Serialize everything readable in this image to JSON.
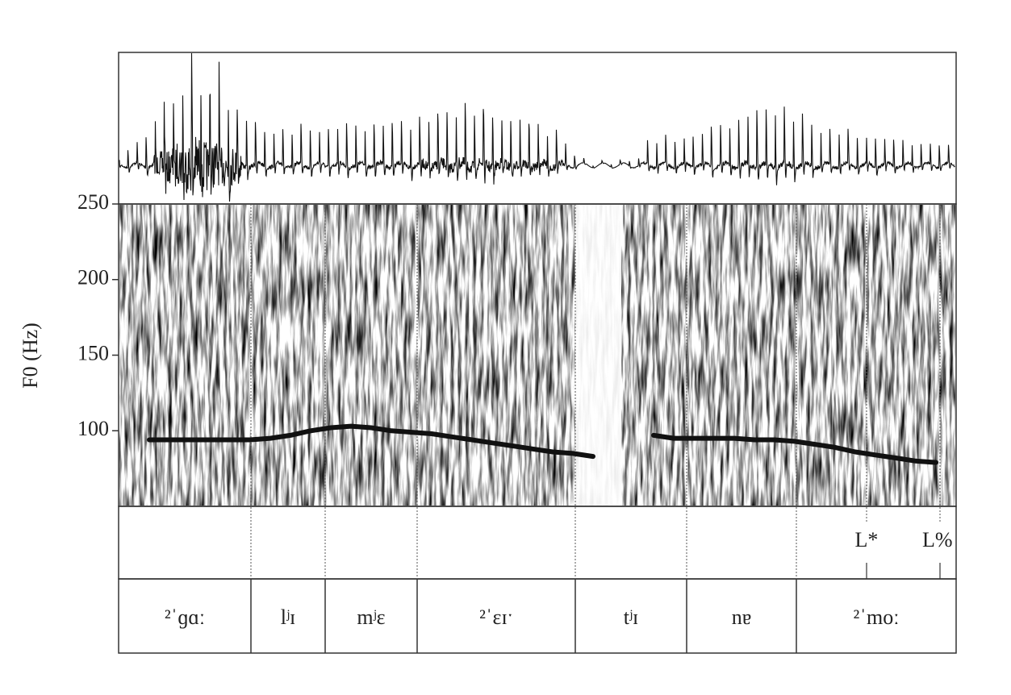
{
  "chart_data": {
    "type": "line",
    "y_label": "F0 (Hz)",
    "ylim": [
      50,
      250
    ],
    "yticks": [
      100,
      150,
      200,
      250
    ],
    "color": "#111111",
    "values": [
      null,
      94,
      94,
      94,
      94,
      94,
      94,
      95,
      97,
      100,
      102,
      103,
      102,
      100,
      99,
      98,
      96,
      94,
      92,
      90,
      88,
      86,
      85,
      83,
      null,
      null,
      97,
      95,
      95,
      95,
      95,
      94,
      94,
      93,
      91,
      89,
      86,
      84,
      82,
      80,
      79,
      null
    ],
    "tones": [
      "L*",
      "L%"
    ],
    "segments": [
      "²ˈɡɑː",
      "lʲɪ",
      "mʲɛ",
      "²ˈɛɪˑ",
      "tʲɪ",
      "nɐ",
      "²ˈmoː"
    ]
  }
}
